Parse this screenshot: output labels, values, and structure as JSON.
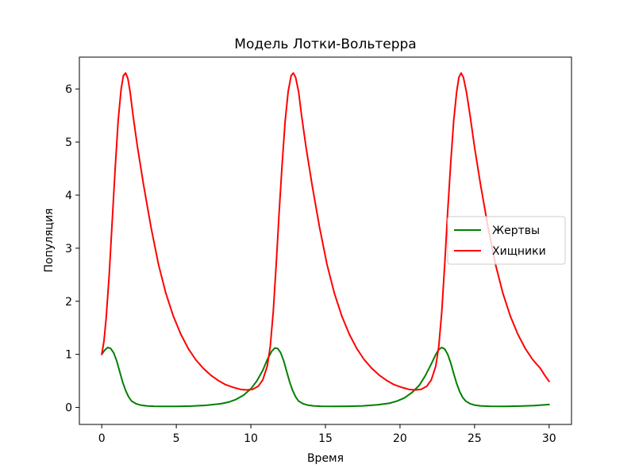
{
  "chart_data": {
    "type": "line",
    "title": "Модель Лотки-Вольтерра",
    "xlabel": "Время",
    "ylabel": "Популяция",
    "xlim": [
      -1.5,
      31.5
    ],
    "ylim": [
      -0.32,
      6.6
    ],
    "x_ticks": [
      0,
      5,
      10,
      15,
      20,
      25,
      30
    ],
    "y_ticks": [
      0,
      1,
      2,
      3,
      4,
      5,
      6
    ],
    "grid": false,
    "legend_position": "center-right",
    "series": [
      {
        "name": "Жертвы",
        "color": "#008000",
        "points": [
          [
            0,
            1.0
          ],
          [
            0.2,
            1.08
          ],
          [
            0.4,
            1.13
          ],
          [
            0.6,
            1.11
          ],
          [
            0.8,
            1.03
          ],
          [
            1.0,
            0.88
          ],
          [
            1.2,
            0.68
          ],
          [
            1.4,
            0.48
          ],
          [
            1.6,
            0.32
          ],
          [
            1.8,
            0.2
          ],
          [
            2.0,
            0.12
          ],
          [
            2.3,
            0.07
          ],
          [
            2.6,
            0.045
          ],
          [
            3.0,
            0.03
          ],
          [
            3.5,
            0.022
          ],
          [
            4.0,
            0.02
          ],
          [
            5.0,
            0.02
          ],
          [
            6.0,
            0.025
          ],
          [
            7.0,
            0.04
          ],
          [
            8.0,
            0.07
          ],
          [
            8.5,
            0.1
          ],
          [
            9.0,
            0.15
          ],
          [
            9.5,
            0.23
          ],
          [
            10.0,
            0.35
          ],
          [
            10.4,
            0.5
          ],
          [
            10.8,
            0.7
          ],
          [
            11.1,
            0.9
          ],
          [
            11.4,
            1.06
          ],
          [
            11.6,
            1.12
          ],
          [
            11.8,
            1.11
          ],
          [
            12.0,
            1.03
          ],
          [
            12.2,
            0.88
          ],
          [
            12.4,
            0.68
          ],
          [
            12.6,
            0.48
          ],
          [
            12.8,
            0.32
          ],
          [
            13.0,
            0.2
          ],
          [
            13.2,
            0.12
          ],
          [
            13.5,
            0.07
          ],
          [
            13.8,
            0.045
          ],
          [
            14.2,
            0.03
          ],
          [
            14.7,
            0.022
          ],
          [
            15.5,
            0.02
          ],
          [
            16.5,
            0.022
          ],
          [
            17.5,
            0.03
          ],
          [
            18.5,
            0.05
          ],
          [
            19.3,
            0.08
          ],
          [
            19.8,
            0.12
          ],
          [
            20.3,
            0.18
          ],
          [
            20.8,
            0.28
          ],
          [
            21.3,
            0.42
          ],
          [
            21.7,
            0.6
          ],
          [
            22.1,
            0.82
          ],
          [
            22.4,
            1.0
          ],
          [
            22.6,
            1.09
          ],
          [
            22.8,
            1.13
          ],
          [
            23.0,
            1.1
          ],
          [
            23.2,
            1.0
          ],
          [
            23.4,
            0.84
          ],
          [
            23.6,
            0.64
          ],
          [
            23.8,
            0.45
          ],
          [
            24.0,
            0.3
          ],
          [
            24.2,
            0.19
          ],
          [
            24.4,
            0.12
          ],
          [
            24.7,
            0.07
          ],
          [
            25.0,
            0.045
          ],
          [
            25.4,
            0.03
          ],
          [
            26.0,
            0.022
          ],
          [
            27.0,
            0.02
          ],
          [
            28.0,
            0.025
          ],
          [
            29.0,
            0.035
          ],
          [
            30.0,
            0.055
          ]
        ]
      },
      {
        "name": "Хищники",
        "color": "#ff0000",
        "points": [
          [
            0,
            1.0
          ],
          [
            0.15,
            1.25
          ],
          [
            0.3,
            1.7
          ],
          [
            0.5,
            2.5
          ],
          [
            0.7,
            3.5
          ],
          [
            0.9,
            4.5
          ],
          [
            1.1,
            5.4
          ],
          [
            1.3,
            6.0
          ],
          [
            1.45,
            6.25
          ],
          [
            1.6,
            6.3
          ],
          [
            1.75,
            6.2
          ],
          [
            1.9,
            5.95
          ],
          [
            2.1,
            5.5
          ],
          [
            2.4,
            4.9
          ],
          [
            2.8,
            4.2
          ],
          [
            3.3,
            3.4
          ],
          [
            3.8,
            2.7
          ],
          [
            4.3,
            2.15
          ],
          [
            4.8,
            1.72
          ],
          [
            5.3,
            1.38
          ],
          [
            5.8,
            1.11
          ],
          [
            6.3,
            0.9
          ],
          [
            6.8,
            0.74
          ],
          [
            7.3,
            0.61
          ],
          [
            7.8,
            0.51
          ],
          [
            8.3,
            0.43
          ],
          [
            8.8,
            0.38
          ],
          [
            9.3,
            0.34
          ],
          [
            9.7,
            0.33
          ],
          [
            10.1,
            0.34
          ],
          [
            10.5,
            0.4
          ],
          [
            10.8,
            0.52
          ],
          [
            11.1,
            0.78
          ],
          [
            11.3,
            1.15
          ],
          [
            11.5,
            1.8
          ],
          [
            11.7,
            2.7
          ],
          [
            11.9,
            3.7
          ],
          [
            12.1,
            4.6
          ],
          [
            12.3,
            5.4
          ],
          [
            12.5,
            5.95
          ],
          [
            12.7,
            6.25
          ],
          [
            12.85,
            6.3
          ],
          [
            13.0,
            6.22
          ],
          [
            13.2,
            5.95
          ],
          [
            13.4,
            5.5
          ],
          [
            13.7,
            4.9
          ],
          [
            14.1,
            4.2
          ],
          [
            14.6,
            3.4
          ],
          [
            15.1,
            2.7
          ],
          [
            15.6,
            2.15
          ],
          [
            16.1,
            1.72
          ],
          [
            16.6,
            1.38
          ],
          [
            17.1,
            1.11
          ],
          [
            17.6,
            0.9
          ],
          [
            18.1,
            0.74
          ],
          [
            18.6,
            0.61
          ],
          [
            19.1,
            0.51
          ],
          [
            19.6,
            0.43
          ],
          [
            20.1,
            0.38
          ],
          [
            20.6,
            0.34
          ],
          [
            21.0,
            0.33
          ],
          [
            21.4,
            0.34
          ],
          [
            21.8,
            0.4
          ],
          [
            22.1,
            0.52
          ],
          [
            22.4,
            0.78
          ],
          [
            22.6,
            1.15
          ],
          [
            22.8,
            1.8
          ],
          [
            23.0,
            2.7
          ],
          [
            23.2,
            3.7
          ],
          [
            23.4,
            4.6
          ],
          [
            23.6,
            5.4
          ],
          [
            23.8,
            5.95
          ],
          [
            23.95,
            6.22
          ],
          [
            24.1,
            6.3
          ],
          [
            24.25,
            6.22
          ],
          [
            24.45,
            5.95
          ],
          [
            24.7,
            5.5
          ],
          [
            25.0,
            4.9
          ],
          [
            25.4,
            4.2
          ],
          [
            25.9,
            3.4
          ],
          [
            26.4,
            2.7
          ],
          [
            26.9,
            2.15
          ],
          [
            27.4,
            1.72
          ],
          [
            27.9,
            1.38
          ],
          [
            28.4,
            1.11
          ],
          [
            28.9,
            0.9
          ],
          [
            29.4,
            0.74
          ],
          [
            29.7,
            0.61
          ],
          [
            30.0,
            0.49
          ]
        ]
      }
    ]
  }
}
